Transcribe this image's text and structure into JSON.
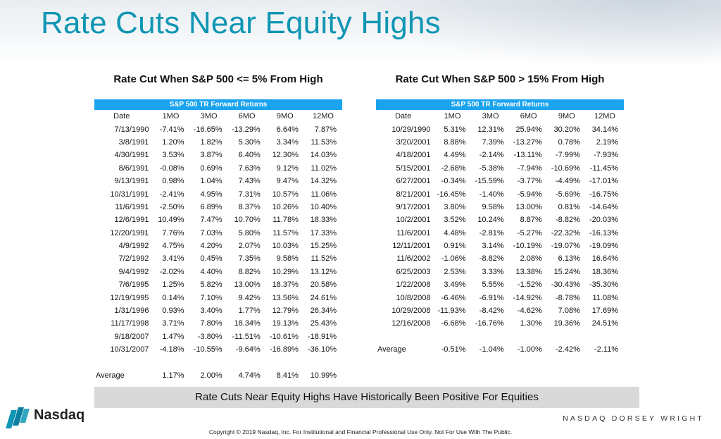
{
  "title": "Rate Cuts Near Equity Highs",
  "left_panel": {
    "title": "Rate Cut When S&P 500 <= 5% From High",
    "band": "S&P 500 TR Forward Returns",
    "headers": [
      "Date",
      "1MO",
      "3MO",
      "6MO",
      "9MO",
      "12MO"
    ],
    "rows": [
      [
        "7/13/1990",
        "-7.41%",
        "-16.65%",
        "-13.29%",
        "6.64%",
        "7.87%"
      ],
      [
        "3/8/1991",
        "1.20%",
        "1.82%",
        "5.30%",
        "3.34%",
        "11.53%"
      ],
      [
        "4/30/1991",
        "3.53%",
        "3.87%",
        "6.40%",
        "12.30%",
        "14.03%"
      ],
      [
        "8/6/1991",
        "-0.08%",
        "0.69%",
        "7.63%",
        "9.12%",
        "11.02%"
      ],
      [
        "9/13/1991",
        "0.98%",
        "1.04%",
        "7.43%",
        "9.47%",
        "14.32%"
      ],
      [
        "10/31/1991",
        "-2.41%",
        "4.95%",
        "7.31%",
        "10.57%",
        "11.06%"
      ],
      [
        "11/6/1991",
        "-2.50%",
        "6.89%",
        "8.37%",
        "10.26%",
        "10.40%"
      ],
      [
        "12/6/1991",
        "10.49%",
        "7.47%",
        "10.70%",
        "11.78%",
        "18.33%"
      ],
      [
        "12/20/1991",
        "7.76%",
        "7.03%",
        "5.80%",
        "11.57%",
        "17.33%"
      ],
      [
        "4/9/1992",
        "4.75%",
        "4.20%",
        "2.07%",
        "10.03%",
        "15.25%"
      ],
      [
        "7/2/1992",
        "3.41%",
        "0.45%",
        "7.35%",
        "9.58%",
        "11.52%"
      ],
      [
        "9/4/1992",
        "-2.02%",
        "4.40%",
        "8.82%",
        "10.29%",
        "13.12%"
      ],
      [
        "7/6/1995",
        "1.25%",
        "5.82%",
        "13.00%",
        "18.37%",
        "20.58%"
      ],
      [
        "12/19/1995",
        "0.14%",
        "7.10%",
        "9.42%",
        "13.56%",
        "24.61%"
      ],
      [
        "1/31/1996",
        "0.93%",
        "3.40%",
        "1.77%",
        "12.79%",
        "26.34%"
      ],
      [
        "11/17/1998",
        "3.71%",
        "7.80%",
        "18.34%",
        "19.13%",
        "25.43%"
      ],
      [
        "9/18/2007",
        "1.47%",
        "-3.80%",
        "-11.51%",
        "-10.61%",
        "-18.91%"
      ],
      [
        "10/31/2007",
        "-4.18%",
        "-10.55%",
        "-9.64%",
        "-16.89%",
        "-36.10%"
      ]
    ],
    "average": [
      "Average",
      "1.17%",
      "2.00%",
      "4.74%",
      "8.41%",
      "10.99%"
    ]
  },
  "right_panel": {
    "title": "Rate Cut When S&P 500 > 15% From High",
    "band": "S&P 500 TR Forward Returns",
    "headers": [
      "Date",
      "1MO",
      "3MO",
      "6MO",
      "9MO",
      "12MO"
    ],
    "rows": [
      [
        "10/29/1990",
        "5.31%",
        "12.31%",
        "25.94%",
        "30.20%",
        "34.14%"
      ],
      [
        "3/20/2001",
        "8.88%",
        "7.39%",
        "-13.27%",
        "0.78%",
        "2.19%"
      ],
      [
        "4/18/2001",
        "4.49%",
        "-2.14%",
        "-13.11%",
        "-7.99%",
        "-7.93%"
      ],
      [
        "5/15/2001",
        "-2.68%",
        "-5.38%",
        "-7.94%",
        "-10.69%",
        "-11.45%"
      ],
      [
        "6/27/2001",
        "-0.34%",
        "-15.59%",
        "-3.77%",
        "-4.49%",
        "-17.01%"
      ],
      [
        "8/21/2001",
        "-16.45%",
        "-1.40%",
        "-5.94%",
        "-5.69%",
        "-16.75%"
      ],
      [
        "9/17/2001",
        "3.80%",
        "9.58%",
        "13.00%",
        "0.81%",
        "-14.64%"
      ],
      [
        "10/2/2001",
        "3.52%",
        "10.24%",
        "8.87%",
        "-8.82%",
        "-20.03%"
      ],
      [
        "11/6/2001",
        "4.48%",
        "-2.81%",
        "-5.27%",
        "-22.32%",
        "-16.13%"
      ],
      [
        "12/11/2001",
        "0.91%",
        "3.14%",
        "-10.19%",
        "-19.07%",
        "-19.09%"
      ],
      [
        "11/6/2002",
        "-1.06%",
        "-8.82%",
        "2.08%",
        "6.13%",
        "16.64%"
      ],
      [
        "6/25/2003",
        "2.53%",
        "3.33%",
        "13.38%",
        "15.24%",
        "18.36%"
      ],
      [
        "1/22/2008",
        "3.49%",
        "5.55%",
        "-1.52%",
        "-30.43%",
        "-35.30%"
      ],
      [
        "10/8/2008",
        "-6.46%",
        "-6.91%",
        "-14.92%",
        "-8.78%",
        "11.08%"
      ],
      [
        "10/29/2008",
        "-11.93%",
        "-8.42%",
        "-4.62%",
        "7.08%",
        "17.69%"
      ],
      [
        "12/16/2008",
        "-6.68%",
        "-16.76%",
        "1.30%",
        "19.36%",
        "24.51%"
      ]
    ],
    "average": [
      "Average",
      "-0.51%",
      "-1.04%",
      "-1.00%",
      "-2.42%",
      "-2.11%"
    ]
  },
  "banner": "Rate Cuts Near Equity Highs Have Historically Been Positive For Equities",
  "logo": {
    "name": "Nasdaq",
    "icon": "nasdaq-logo-icon",
    "color": "#0f96b4"
  },
  "brand_right": "NASDAQ DORSEY WRIGHT",
  "copyright": "Copyright © 2019 Nasdaq, Inc.  For Institutional and Financial Professional Use Only. Not For Use With The Public.",
  "colors": {
    "title": "#0f96b4",
    "band": "#1aa3ef",
    "banner": "#d9d9d9"
  }
}
